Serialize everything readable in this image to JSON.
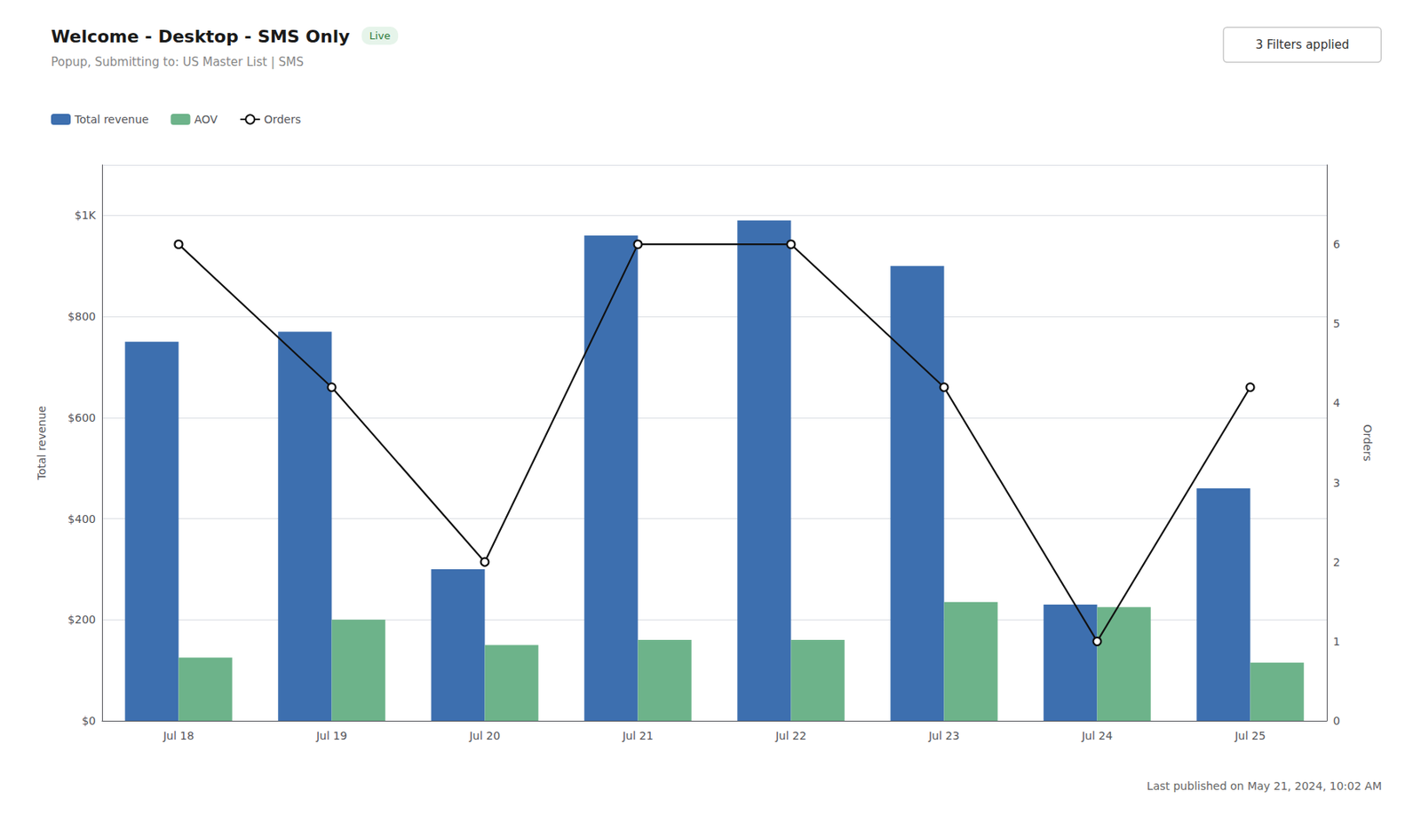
{
  "chart_data": {
    "type": "bar",
    "title": "Welcome - Desktop - SMS Only",
    "subtitle": "Popup, Submitting to: US Master List | SMS",
    "categories": [
      "Jul 18",
      "Jul 19",
      "Jul 20",
      "Jul 21",
      "Jul 22",
      "Jul 23",
      "Jul 24",
      "Jul 25"
    ],
    "series": [
      {
        "name": "Total revenue",
        "color": "#3d6faf",
        "values": [
          750,
          770,
          300,
          960,
          990,
          900,
          230,
          460
        ]
      },
      {
        "name": "AOV",
        "color": "#6db38a",
        "values": [
          125,
          200,
          150,
          160,
          160,
          235,
          225,
          115
        ]
      },
      {
        "name": "Orders",
        "type": "line",
        "axis": "y2",
        "color": "#111111",
        "marker": "circle",
        "values": [
          6,
          4.2,
          2,
          6,
          6,
          4.2,
          1,
          4.2
        ]
      }
    ],
    "ylabel": "Total revenue",
    "y2label": "Orders",
    "ylim": [
      0,
      1100
    ],
    "yticks": [
      {
        "value": 0,
        "label": "$0"
      },
      {
        "value": 200,
        "label": "$200"
      },
      {
        "value": 400,
        "label": "$400"
      },
      {
        "value": 600,
        "label": "$600"
      },
      {
        "value": 800,
        "label": "$800"
      },
      {
        "value": 1000,
        "label": "$1K"
      }
    ],
    "y2lim": [
      0,
      7
    ],
    "y2ticks": [
      0,
      1,
      2,
      3,
      4,
      5,
      6
    ],
    "grid": true,
    "legend": "upper left",
    "annotations": [
      "Live",
      "3 Filters applied",
      "Last published on May 21, 2024, 10:02 AM"
    ]
  }
}
